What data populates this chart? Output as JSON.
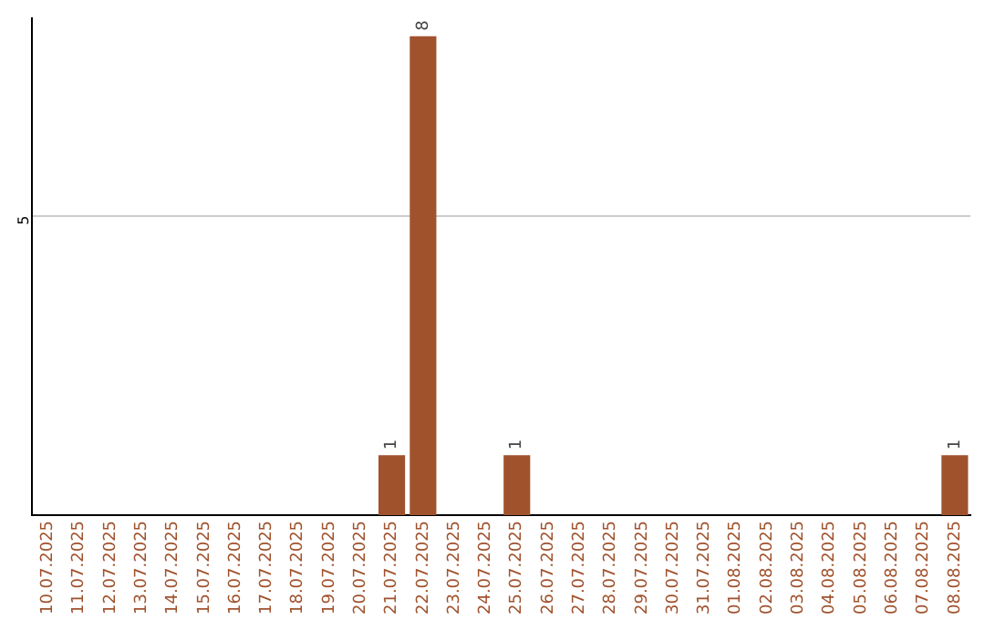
{
  "chart_data": {
    "type": "bar",
    "categories": [
      "10.07.2025",
      "11.07.2025",
      "12.07.2025",
      "13.07.2025",
      "14.07.2025",
      "15.07.2025",
      "16.07.2025",
      "17.07.2025",
      "18.07.2025",
      "19.07.2025",
      "20.07.2025",
      "21.07.2025",
      "22.07.2025",
      "23.07.2025",
      "24.07.2025",
      "25.07.2025",
      "26.07.2025",
      "27.07.2025",
      "28.07.2025",
      "29.07.2025",
      "30.07.2025",
      "31.07.2025",
      "01.08.2025",
      "02.08.2025",
      "03.08.2025",
      "04.08.2025",
      "05.08.2025",
      "06.08.2025",
      "07.08.2025",
      "08.08.2025"
    ],
    "values": [
      0,
      0,
      0,
      0,
      0,
      0,
      0,
      0,
      0,
      0,
      0,
      1,
      8,
      0,
      0,
      1,
      0,
      0,
      0,
      0,
      0,
      0,
      0,
      0,
      0,
      0,
      0,
      0,
      0,
      1
    ],
    "color": "#a0522d",
    "value_labels": [
      null,
      null,
      null,
      null,
      null,
      null,
      null,
      null,
      null,
      null,
      null,
      "1",
      "8",
      null,
      null,
      "1",
      null,
      null,
      null,
      null,
      null,
      null,
      null,
      null,
      null,
      null,
      null,
      null,
      null,
      "1"
    ],
    "ylim": [
      0,
      8.3
    ],
    "yticks": [
      5
    ],
    "grid": "y",
    "legend": false
  }
}
